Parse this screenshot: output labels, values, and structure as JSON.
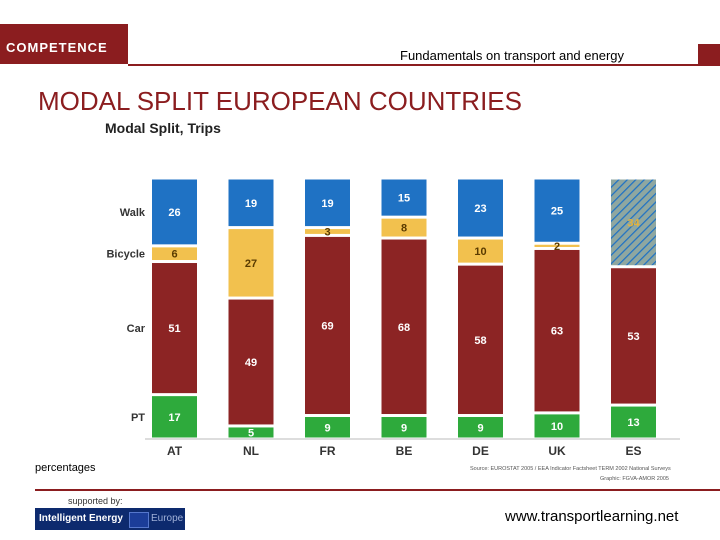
{
  "header": {
    "logo": "COMPETENCE",
    "subtitle": "Fundamentals on transport and energy"
  },
  "title": "MODAL SPLIT EUROPEAN COUNTRIES",
  "chart_data": {
    "type": "bar",
    "stacked": true,
    "orientation": "vertical",
    "title": "Modal Split, Trips",
    "categories": [
      "AT",
      "NL",
      "FR",
      "BE",
      "DE",
      "UK",
      "ES"
    ],
    "series": [
      {
        "name": "PT",
        "values": [
          17,
          5,
          9,
          9,
          9,
          10,
          13
        ],
        "labels": [
          "17",
          "5",
          "9",
          "9",
          "9",
          "10",
          "13"
        ]
      },
      {
        "name": "Car",
        "values": [
          51,
          49,
          69,
          68,
          58,
          63,
          53
        ],
        "labels": [
          "51",
          "49",
          "69",
          "68",
          "58",
          "63",
          "53"
        ]
      },
      {
        "name": "Bicycle",
        "values": [
          6,
          27,
          3,
          8,
          10,
          2,
          0
        ],
        "labels": [
          "6",
          "27",
          "3",
          "8",
          "10",
          "2",
          ""
        ]
      },
      {
        "name": "Walk",
        "values": [
          26,
          19,
          19,
          15,
          23,
          25,
          34
        ],
        "labels": [
          "26",
          "19",
          "19",
          "15",
          "23",
          "25",
          "34"
        ]
      }
    ],
    "notes": {
      "ES": "Walk segment (34) combines walking and bicycle, shown hatched"
    },
    "ylim": [
      0,
      100
    ],
    "ylabel": "",
    "xlabel": "",
    "colors": {
      "PT": "#2eaa3c",
      "Car": "#8c2424",
      "Bicycle": "#f2c14e",
      "Walk": "#1f72c4",
      "hatch": "#8fa7a0"
    }
  },
  "footer": {
    "percentages": "percentages",
    "source": "Source: EUROSTAT 2005 / EEA Indicator Factsheet TERM 2002 National Surveys",
    "graphic": "Graphic: FGVA-AMOR 2005",
    "supported_by": "supported by:",
    "ie_logo": "Intelligent Energy",
    "ie_europe": "Europe",
    "website": "www.transportlearning.net"
  }
}
